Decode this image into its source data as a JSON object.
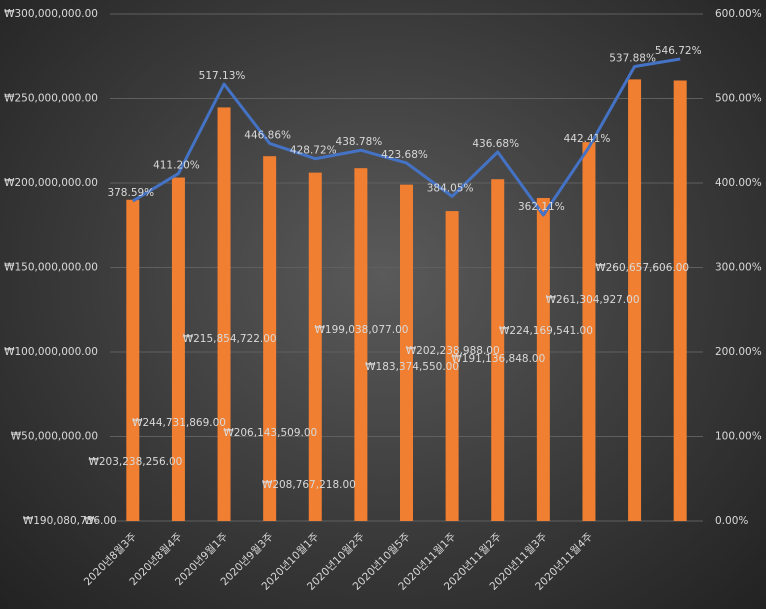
{
  "chart_data": {
    "type": "bar_line",
    "categories": [
      "2020년8월3주",
      "2020년8월4주",
      "2020년9월1주",
      "2020년9월3주",
      "2020년10월1주",
      "2020년10월2주",
      "2020년10월5주",
      "2020년11월1주",
      "2020년11월2주",
      "2020년11월3주",
      "2020년11월4주",
      null,
      null
    ],
    "series": [
      {
        "type": "bar",
        "color": "#f07f32",
        "values": [
          190080736,
          203238256,
          244731869,
          215854722,
          206143509,
          208767218,
          199038077,
          183374550,
          202238988,
          191136848,
          224169541,
          261304927,
          260657606
        ],
        "value_labels": [
          "₩190,080,736.00",
          "₩203,238,256.00",
          "₩244,731,869.00",
          "₩215,854,722.00",
          "₩206,143,509.00",
          "₩208,767,218.00",
          "₩199,038,077.00",
          "₩183,374,550.00",
          "₩202,238,988.00",
          "₩191,136,848.00",
          "₩224,169,541.00",
          "₩261,304,927.00",
          "₩260,657,606.00"
        ]
      },
      {
        "type": "line",
        "axis": "y2",
        "color": "#4472c4",
        "values": [
          378.59,
          411.2,
          517.13,
          446.86,
          428.72,
          438.78,
          423.68,
          384.05,
          436.68,
          362.11,
          442.41,
          537.88,
          546.72
        ],
        "value_labels": [
          "378.59%",
          "411.20%",
          "517.13%",
          "446.86%",
          "428.72%",
          "438.78%",
          "423.68%",
          "384.05%",
          "436.68%",
          "362.11%",
          "442.41%",
          "537.88%",
          "546.72%"
        ]
      }
    ],
    "ylim": [
      0,
      300000000
    ],
    "yticks": [
      {
        "value": 0,
        "label": "₩-"
      },
      {
        "value": 50000000,
        "label": "₩50,000,000.00"
      },
      {
        "value": 100000000,
        "label": "₩100,000,000.00"
      },
      {
        "value": 150000000,
        "label": "₩150,000,000.00"
      },
      {
        "value": 200000000,
        "label": "₩200,000,000.00"
      },
      {
        "value": 250000000,
        "label": "₩250,000,000.00"
      },
      {
        "value": 300000000,
        "label": "₩300,000,000.00"
      }
    ],
    "y2lim": [
      0,
      600
    ],
    "y2ticks": [
      {
        "value": 0,
        "label": "0.00%"
      },
      {
        "value": 100,
        "label": "100.00%"
      },
      {
        "value": 200,
        "label": "200.00%"
      },
      {
        "value": 300,
        "label": "300.00%"
      },
      {
        "value": 400,
        "label": "400.00%"
      },
      {
        "value": 500,
        "label": "500.00%"
      },
      {
        "value": 600,
        "label": "600.00%"
      }
    ],
    "grid": true
  }
}
